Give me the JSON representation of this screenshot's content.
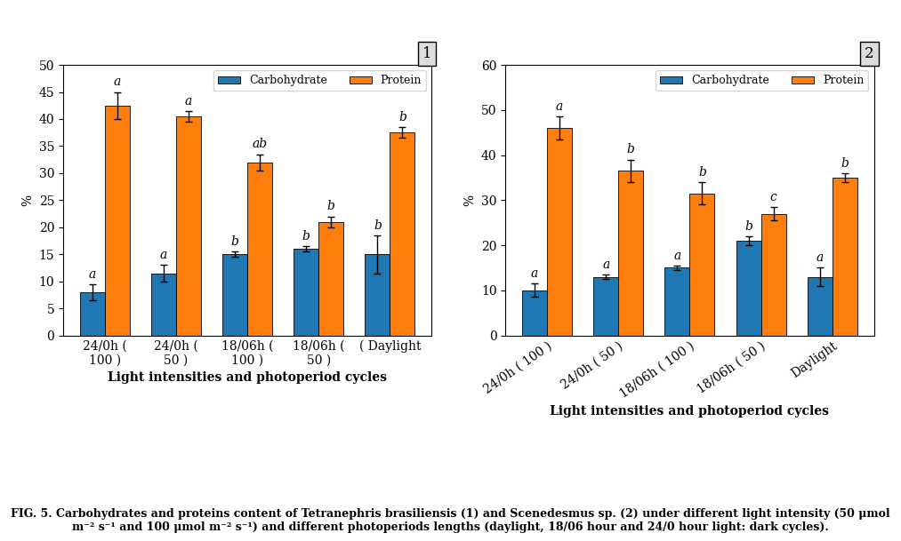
{
  "chart_data": [
    {
      "type": "bar",
      "title": "1",
      "xlabel": "Light intensities and photoperiod cycles",
      "ylabel": "%",
      "categories": [
        "24/0h (\n100 )",
        "24/0h (\n50 )",
        "18/06h (\n100 )",
        "18/06h (\n50 )",
        "( Daylight"
      ],
      "series": [
        {
          "name": "Carbohydrate",
          "values": [
            8,
            11.5,
            15,
            16,
            15
          ],
          "errors": [
            1.5,
            1.5,
            0.5,
            0.5,
            3.5
          ],
          "annotations": [
            "a",
            "a",
            "b",
            "b",
            "b"
          ]
        },
        {
          "name": "Protein",
          "values": [
            42.5,
            40.5,
            32,
            21,
            37.5
          ],
          "errors": [
            2.5,
            1.0,
            1.5,
            1.0,
            1.0
          ],
          "annotations": [
            "a",
            "a",
            "ab",
            "b",
            "b"
          ]
        }
      ],
      "ylim": [
        0,
        50
      ],
      "yticks": [
        0,
        5,
        10,
        15,
        20,
        25,
        30,
        35,
        40,
        45,
        50
      ],
      "legend": "upper right"
    },
    {
      "type": "bar",
      "title": "2",
      "xlabel": "Light intensities and photoperiod cycles",
      "ylabel": "%",
      "categories": [
        "24/0h ( 100 )",
        "24/0h ( 50 )",
        "18/06h ( 100 )",
        "18/06h ( 50 )",
        "Daylight"
      ],
      "series": [
        {
          "name": "Carbohydrate",
          "values": [
            10,
            13,
            15,
            21,
            13
          ],
          "errors": [
            1.5,
            0.5,
            0.5,
            1.0,
            2.0
          ],
          "annotations": [
            "a",
            "a",
            "a",
            "b",
            "a"
          ]
        },
        {
          "name": "Protein",
          "values": [
            46,
            36.5,
            31.5,
            27,
            35
          ],
          "errors": [
            2.5,
            2.5,
            2.5,
            1.5,
            1.0
          ],
          "annotations": [
            "a",
            "b",
            "b",
            "c",
            "b"
          ]
        }
      ],
      "ylim": [
        0,
        60
      ],
      "yticks": [
        0,
        10,
        20,
        30,
        40,
        50,
        60
      ],
      "legend": "upper right"
    }
  ],
  "caption": "FIG. 5. Carbohydrates and proteins content of Tetranephris brasiliensis (1) and Scenedesmus sp. (2) under different light intensity (50 μmol m⁻² s⁻¹ and 100 μmol m⁻² s⁻¹) and different photoperiods lengths (daylight, 18/06 hour and 24/0 hour light: dark cycles)."
}
